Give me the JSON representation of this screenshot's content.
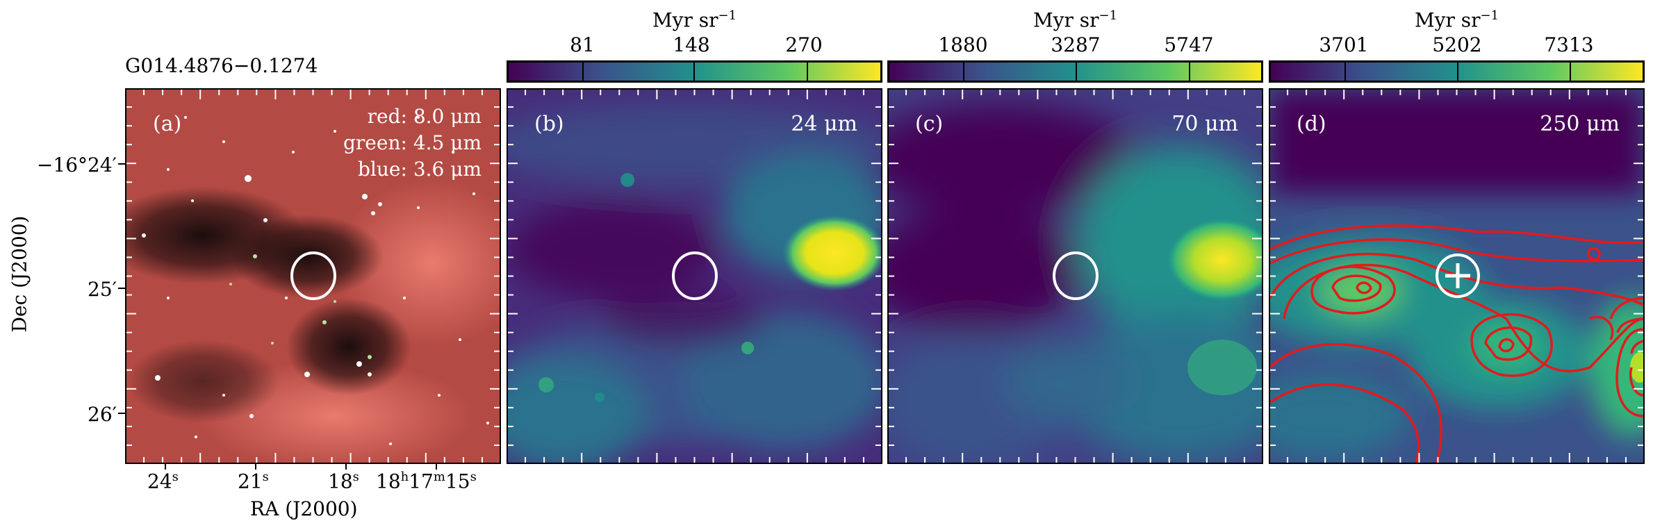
{
  "source_label": "G014.4876−0.1274",
  "colorbar_unit": "Myr sr",
  "colorbar_unit_exp": "−1",
  "panels": [
    {
      "id": "a",
      "label": "(a)",
      "rgb": {
        "red": "red: 8.0 μm",
        "green": "green: 4.5 μm",
        "blue": "blue: 3.6 μm"
      }
    },
    {
      "id": "b",
      "label": "(b)",
      "band": "24 μm",
      "colorbar_ticks": [
        "81",
        "148",
        "270"
      ]
    },
    {
      "id": "c",
      "label": "(c)",
      "band": "70 μm",
      "colorbar_ticks": [
        "1880",
        "3287",
        "5747"
      ]
    },
    {
      "id": "d",
      "label": "(d)",
      "band": "250 μm",
      "colorbar_ticks": [
        "3701",
        "5202",
        "7313"
      ]
    }
  ],
  "axes": {
    "ylabel": "Dec (J2000)",
    "xlabel": "RA (J2000)",
    "y_ticks": [
      {
        "text": "−16°24′"
      },
      {
        "text": "25′"
      },
      {
        "text": "26′"
      }
    ],
    "x_ticks": [
      {
        "main": "24",
        "sup": "s"
      },
      {
        "main": "21",
        "sup": "s"
      },
      {
        "main": "18",
        "sup": "s"
      },
      {
        "main": "18",
        "sup1": "h",
        "mid": "17",
        "sup2": "m",
        "end": "15",
        "sup3": "s"
      }
    ]
  },
  "colors": {
    "viridis_low": "#440154",
    "viridis_mid": "#21918c",
    "viridis_high": "#fde725",
    "contour": "#e31a1c",
    "marker": "#ffffff"
  }
}
